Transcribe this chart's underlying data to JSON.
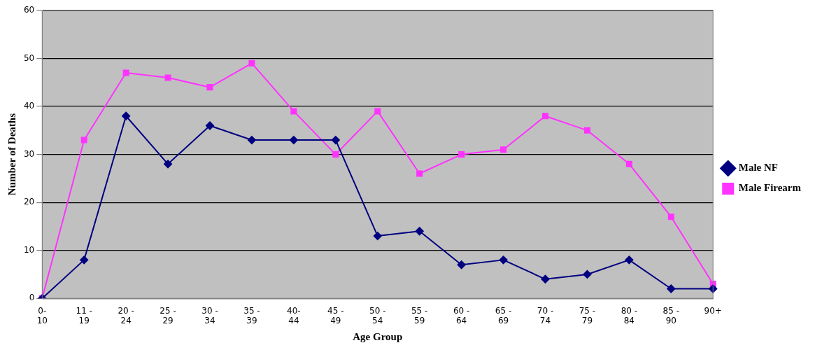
{
  "chart_data": {
    "type": "line",
    "xlabel": "Age Group",
    "ylabel": "Number of Deaths",
    "categories": [
      "0- 10",
      "11 - 19",
      "20 - 24",
      "25 - 29",
      "30 - 34",
      "35 - 39",
      "40- 44",
      "45 - 49",
      "50 - 54",
      "55 - 59",
      "60 - 64",
      "65 - 69",
      "70 - 74",
      "75 - 79",
      "80 - 84",
      "85 - 90",
      "90+"
    ],
    "series": [
      {
        "name": "Male NF",
        "color": "#000080",
        "marker": "diamond",
        "values": [
          0,
          8,
          38,
          28,
          36,
          33,
          33,
          33,
          13,
          14,
          7,
          8,
          4,
          5,
          8,
          2,
          2
        ]
      },
      {
        "name": "Male Firearm",
        "color": "#ff33ff",
        "marker": "square",
        "values": [
          0,
          33,
          47,
          46,
          44,
          49,
          39,
          30,
          39,
          26,
          30,
          31,
          38,
          35,
          28,
          17,
          3
        ]
      }
    ],
    "ylim": [
      0,
      60
    ],
    "yticks": [
      0,
      10,
      20,
      30,
      40,
      50,
      60
    ],
    "grid": "y",
    "legend": "right",
    "line_style": "solid"
  }
}
